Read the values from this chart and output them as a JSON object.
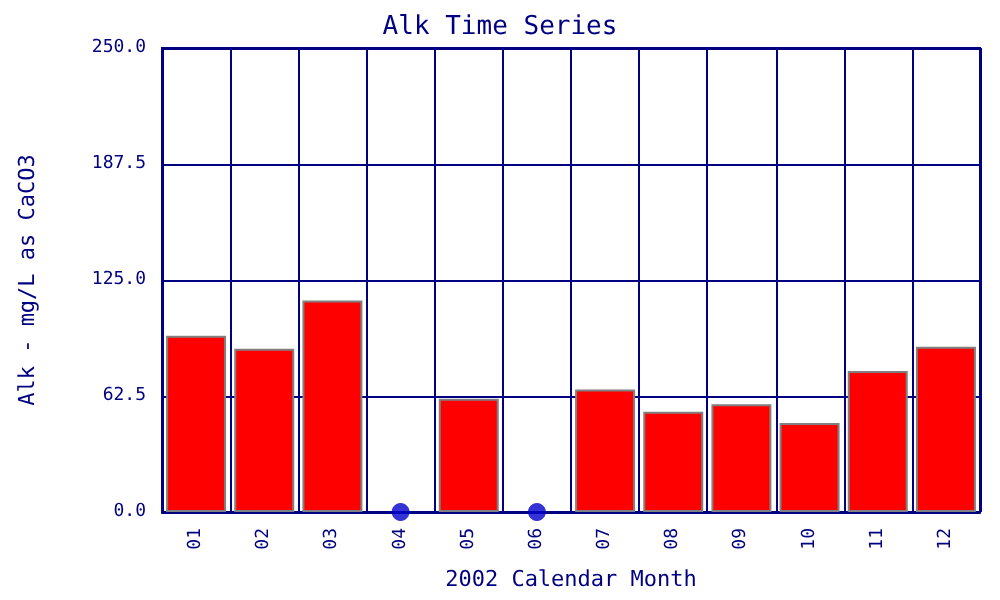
{
  "chart_data": {
    "type": "bar",
    "title": "Alk Time Series",
    "xlabel": "2002 Calendar Month",
    "ylabel": "Alk - mg/L as CaCO3",
    "categories": [
      "01",
      "02",
      "03",
      "04",
      "05",
      "06",
      "07",
      "08",
      "09",
      "10",
      "11",
      "12"
    ],
    "series": [
      {
        "color": "#ff0000",
        "values": [
          95,
          88,
          114,
          null,
          61,
          null,
          66,
          54,
          58,
          48,
          76,
          89
        ]
      },
      {
        "type": "scatter",
        "color": "#0000cc",
        "x": [
          "04",
          "06"
        ],
        "values": [
          0,
          0
        ],
        "marker": "circle"
      }
    ],
    "ylim": [
      0,
      250
    ],
    "yticks": [
      {
        "value": 0,
        "label": "0.0"
      },
      62.5,
      {
        "value": 125,
        "label": "125.0"
      },
      187.5,
      {
        "value": 250,
        "label": "250.0"
      }
    ],
    "grid": true
  }
}
